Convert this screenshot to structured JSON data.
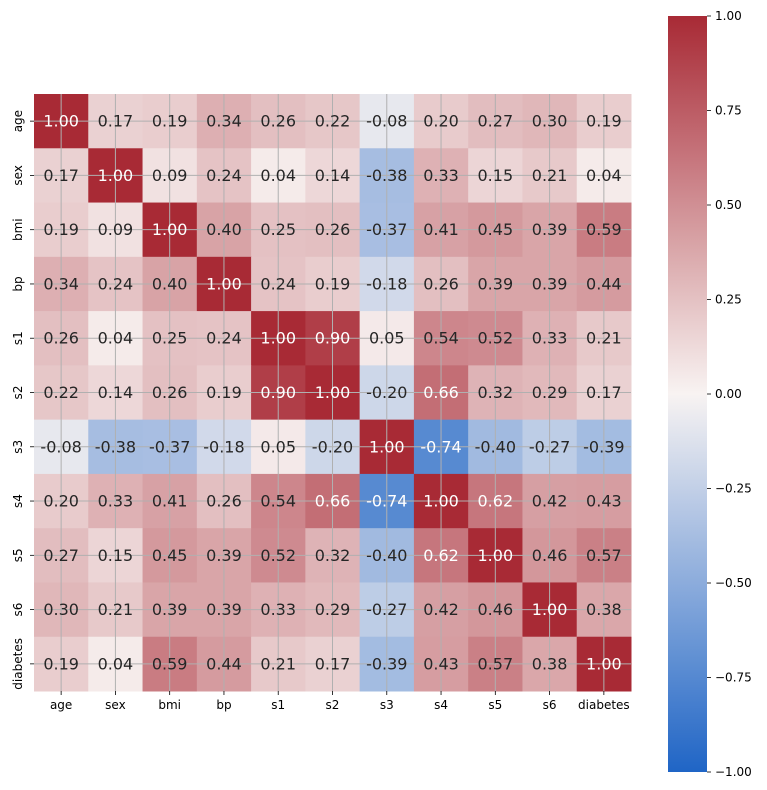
{
  "chart_data": {
    "type": "heatmap",
    "title": "",
    "xlabel": "",
    "ylabel": "",
    "labels": [
      "age",
      "sex",
      "bmi",
      "bp",
      "s1",
      "s2",
      "s3",
      "s4",
      "s5",
      "s6",
      "diabetes"
    ],
    "values": [
      [
        1.0,
        0.17,
        0.19,
        0.34,
        0.26,
        0.22,
        -0.08,
        0.2,
        0.27,
        0.3,
        0.19
      ],
      [
        0.17,
        1.0,
        0.09,
        0.24,
        0.04,
        0.14,
        -0.38,
        0.33,
        0.15,
        0.21,
        0.04
      ],
      [
        0.19,
        0.09,
        1.0,
        0.4,
        0.25,
        0.26,
        -0.37,
        0.41,
        0.45,
        0.39,
        0.59
      ],
      [
        0.34,
        0.24,
        0.4,
        1.0,
        0.24,
        0.19,
        -0.18,
        0.26,
        0.39,
        0.39,
        0.44
      ],
      [
        0.26,
        0.04,
        0.25,
        0.24,
        1.0,
        0.9,
        0.05,
        0.54,
        0.52,
        0.33,
        0.21
      ],
      [
        0.22,
        0.14,
        0.26,
        0.19,
        0.9,
        1.0,
        -0.2,
        0.66,
        0.32,
        0.29,
        0.17
      ],
      [
        -0.08,
        -0.38,
        -0.37,
        -0.18,
        0.05,
        -0.2,
        1.0,
        -0.74,
        -0.4,
        -0.27,
        -0.39
      ],
      [
        0.2,
        0.33,
        0.41,
        0.26,
        0.54,
        0.66,
        -0.74,
        1.0,
        0.62,
        0.42,
        0.43
      ],
      [
        0.27,
        0.15,
        0.45,
        0.39,
        0.52,
        0.32,
        -0.4,
        0.62,
        1.0,
        0.46,
        0.57
      ],
      [
        0.3,
        0.21,
        0.39,
        0.39,
        0.33,
        0.29,
        -0.27,
        0.42,
        0.46,
        1.0,
        0.38
      ],
      [
        0.19,
        0.04,
        0.59,
        0.44,
        0.21,
        0.17,
        -0.39,
        0.43,
        0.57,
        0.38,
        1.0
      ]
    ],
    "value_format": "2dp",
    "colorscale": "vlag",
    "colorbar": {
      "vmin": -1.0,
      "vmax": 1.0,
      "ticks": [
        1.0,
        0.75,
        0.5,
        0.25,
        0.0,
        -0.25,
        -0.5,
        -0.75,
        -1.0
      ],
      "tick_labels": [
        "1.00",
        "0.75",
        "0.50",
        "0.25",
        "0.00",
        "−0.25",
        "−0.50",
        "−0.75",
        "−1.00"
      ]
    },
    "colors": {
      "low": "#1f65c6",
      "mid": "#f8f3f2",
      "high": "#a82a35",
      "grid": "#b0b0b0",
      "text_dark": "#262626",
      "text_light": "#ffffff"
    },
    "grid": true
  }
}
